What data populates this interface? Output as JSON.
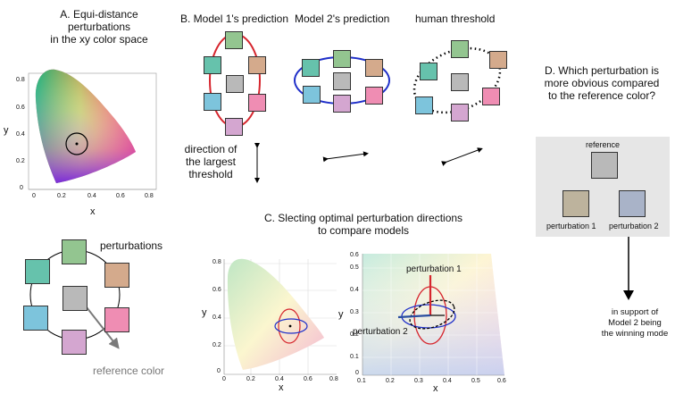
{
  "panelA": {
    "title_lines": [
      "A. Equi-distance",
      "perturbations",
      "in the xy color space"
    ],
    "xlabel": "x",
    "ylabel": "y",
    "xticks": [
      "0",
      "0.2",
      "0.4",
      "0.6",
      "0.8"
    ],
    "yticks": [
      "0",
      "0.2",
      "0.4",
      "0.6",
      "0.8"
    ],
    "perturbations_label": "perturbations",
    "reference_label": "reference color"
  },
  "panelB": {
    "title_model1": "B. Model 1's prediction",
    "title_model2": "Model 2's prediction",
    "title_human": "human threshold",
    "direction_lines": [
      "direction of",
      "the largest",
      "threshold"
    ]
  },
  "panelC": {
    "title_lines": [
      "C. Slecting optimal perturbation directions",
      "to compare models"
    ],
    "left_xlabel": "x",
    "left_ylabel": "y",
    "left_yticks": [
      "0",
      "0.2",
      "0.4",
      "0.6",
      "0.8"
    ],
    "left_xticks": [
      "0",
      "0.2",
      "0.4",
      "0.6",
      "0.8"
    ],
    "right_xlabel": "x",
    "right_ylabel": "y",
    "right_yticks": [
      "0",
      "0.1",
      "0.2",
      "0.3",
      "0.4",
      "0.5",
      "0.6"
    ],
    "right_xticks": [
      "0.1",
      "0.2",
      "0.3",
      "0.4",
      "0.5",
      "0.6"
    ],
    "pert1": "perturbation 1",
    "pert2": "perturbation 2"
  },
  "panelD": {
    "title_lines": [
      "D. Which perturbation is",
      "more obvious compared",
      "to the reference color?"
    ],
    "reference": "reference",
    "pert1": "perturbation 1",
    "pert2": "perturbation 2",
    "conclusion_lines": [
      "in support of",
      "Model 2 being",
      "the winning mode"
    ]
  },
  "colors": {
    "green": "#93c590",
    "tan": "#d4aa8c",
    "pink": "#ef8db3",
    "lilac": "#d4a6d0",
    "blue": "#7dc4dc",
    "teal": "#66c2ac",
    "gray": "#b9b9b9",
    "model1": "#d6262e",
    "model2": "#1f2fc9",
    "human": "#000000",
    "dblue": "#2a4ea0"
  }
}
